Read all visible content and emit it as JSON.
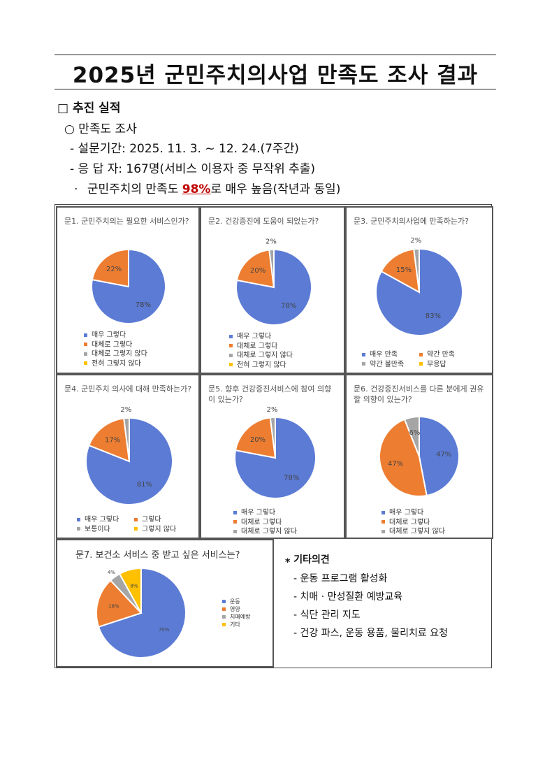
{
  "title": "2025년 군민주치의사업 만족도 조사 결과",
  "section": "□ 추진 실적",
  "subsection": "○ 만족도 조사",
  "period": "- 설문기간: 2025. 11. 3. ~ 12. 24.(7주간)",
  "respondents": "- 응 답 자: 167명(서비스 이용자 중 무작위 추출)",
  "summary": {
    "bullet": "·",
    "before": "군민주치의 만족도 ",
    "highlight": "98%",
    "after": "로 매우 높음(작년과 동일)"
  },
  "colors": {
    "blue": "#5b7bd5",
    "orange": "#ed7d31",
    "gray": "#a5a5a5",
    "yellow": "#ffc000",
    "highlight": "#c00000"
  },
  "chart_data": [
    {
      "type": "pie",
      "title": "문1. 군민주치의는 필요한 서비스인가?",
      "categories": [
        "매우 그렇다",
        "대체로 그렇다",
        "대체로 그렇지 않다",
        "전혀 그렇지 않다"
      ],
      "values": [
        78,
        22,
        0,
        0
      ],
      "labels": [
        "78%",
        "22%",
        "",
        ""
      ]
    },
    {
      "type": "pie",
      "title": "문2. 건강증진에 도움이 되었는가?",
      "categories": [
        "매우 그렇다",
        "대체로 그렇다",
        "대체로 그렇지 않다",
        "전혀 그렇지 않다"
      ],
      "values": [
        78,
        20,
        2,
        0
      ],
      "labels": [
        "78%",
        "20%",
        "2%",
        ""
      ]
    },
    {
      "type": "pie",
      "title": "문3. 군민주치의사업에 만족하는가?",
      "categories": [
        "매우 만족",
        "약간 만족",
        "약간 불만족",
        "무응답"
      ],
      "values": [
        83,
        15,
        2,
        0
      ],
      "labels": [
        "83%",
        "15%",
        "2%",
        ""
      ]
    },
    {
      "type": "pie",
      "title": "문4. 군민주치 의사에 대해 만족하는가?",
      "categories": [
        "매우 그렇다",
        "그렇다",
        "보통이다",
        "그렇지 않다"
      ],
      "values": [
        81,
        17,
        2,
        0
      ],
      "labels": [
        "81%",
        "17%",
        "2%",
        ""
      ]
    },
    {
      "type": "pie",
      "title": "문5. 향후 건강증진서비스에 참여 의향이 있는가?",
      "categories": [
        "매우 그렇다",
        "대체로 그렇다",
        "대체로 그렇지 않다"
      ],
      "values": [
        78,
        20,
        2
      ],
      "labels": [
        "78%",
        "20%",
        "2%"
      ]
    },
    {
      "type": "pie",
      "title": "문6. 건강증진서비스를 다른 분에게 권유할 의향이 있는가?",
      "categories": [
        "매우 그렇다",
        "대체로 그렇다",
        "대체로 그렇지 않다"
      ],
      "values": [
        47,
        47,
        6
      ],
      "labels": [
        "47%",
        "47%",
        "6%"
      ]
    },
    {
      "type": "pie",
      "title": "문7. 보건소 서비스 중 받고 싶은 서비스는?",
      "categories": [
        "운동",
        "영양",
        "치매예방",
        "기타"
      ],
      "values": [
        70,
        18,
        4,
        8
      ],
      "labels": [
        "70%",
        "18%",
        "4%",
        "8%"
      ]
    }
  ],
  "etc": {
    "heading": "⁎ 기타의견",
    "items": [
      "- 운동 프로그램 활성화",
      "- 치매 · 만성질환 예방교육",
      "- 식단 관리 지도",
      "- 건강 파스, 운동 용품, 물리치료 요청"
    ]
  }
}
